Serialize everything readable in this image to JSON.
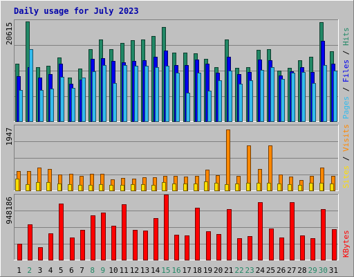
{
  "chart_data": [
    {
      "type": "bar",
      "title": "Daily usage for July 2023",
      "categories": [
        "1",
        "2",
        "3",
        "4",
        "5",
        "6",
        "7",
        "8",
        "9",
        "10",
        "11",
        "12",
        "13",
        "14",
        "15",
        "16",
        "17",
        "18",
        "19",
        "20",
        "21",
        "22",
        "23",
        "24",
        "25",
        "26",
        "27",
        "28",
        "29",
        "30",
        "31"
      ],
      "weekend_days": [
        "2",
        "8",
        "9",
        "15",
        "16",
        "22",
        "23",
        "29",
        "30"
      ],
      "ylabel_parts": [
        "Pages",
        "Files",
        "Hits"
      ],
      "ytick": "20615",
      "ylim": [
        0,
        20615
      ],
      "grid": true,
      "series": [
        {
          "name": "Hits",
          "color": "#228866",
          "values": [
            11800,
            20400,
            11100,
            11400,
            13100,
            9000,
            10900,
            14800,
            16700,
            14700,
            16000,
            16600,
            16700,
            17400,
            19200,
            14000,
            14000,
            13900,
            12800,
            11200,
            16700,
            11000,
            11200,
            14600,
            14700,
            10500,
            11000,
            12600,
            13200,
            20200,
            14400
          ]
        },
        {
          "name": "Files",
          "color": "#0000ee",
          "values": [
            9300,
            11100,
            9100,
            9700,
            11900,
            7800,
            8700,
            12800,
            12900,
            12400,
            12100,
            12400,
            12600,
            13200,
            14500,
            11600,
            11500,
            12700,
            11800,
            10000,
            13300,
            9700,
            10200,
            12700,
            12500,
            9500,
            10300,
            11100,
            10100,
            16400,
            11800
          ]
        },
        {
          "name": "Pages",
          "color": "#33bbee",
          "values": [
            6500,
            14800,
            6500,
            6800,
            9200,
            7000,
            9000,
            10300,
            11500,
            8000,
            11600,
            11400,
            11400,
            11200,
            11400,
            10000,
            6000,
            10000,
            6400,
            8500,
            10400,
            7800,
            8500,
            10600,
            11100,
            8800,
            10000,
            10200,
            7900,
            11600,
            10400
          ]
        }
      ]
    },
    {
      "type": "bar",
      "ylabel_parts": [
        "Sites",
        "Visits"
      ],
      "ytick": "1947",
      "ylim": [
        0,
        1947
      ],
      "grid": true,
      "series": [
        {
          "name": "Visits",
          "color": "#ff8800",
          "values": [
            610,
            600,
            710,
            660,
            500,
            530,
            460,
            520,
            520,
            370,
            400,
            390,
            420,
            420,
            460,
            470,
            450,
            470,
            640,
            490,
            1830,
            460,
            1350,
            670,
            1350,
            500,
            450,
            340,
            460,
            700,
            460
          ]
        },
        {
          "name": "Sites",
          "color": "#ffdd00",
          "values": [
            390,
            230,
            280,
            280,
            250,
            220,
            200,
            200,
            230,
            210,
            200,
            230,
            230,
            210,
            280,
            240,
            240,
            250,
            300,
            260,
            230,
            240,
            260,
            260,
            260,
            240,
            230,
            210,
            260,
            260,
            250
          ]
        }
      ]
    },
    {
      "type": "bar",
      "ylabel_parts": [
        "KBytes"
      ],
      "ytick": "948186",
      "ylim": [
        0,
        948186
      ],
      "grid": true,
      "series": [
        {
          "name": "KBytes",
          "color": "#ff0000",
          "values": [
            248000,
            519000,
            197000,
            393000,
            822000,
            334000,
            444000,
            648000,
            696000,
            499000,
            811000,
            441000,
            438000,
            615000,
            953000,
            376000,
            368000,
            756000,
            428000,
            383000,
            745000,
            328000,
            360000,
            838000,
            467000,
            334000,
            838000,
            368000,
            329000,
            744000,
            457000
          ]
        }
      ]
    }
  ]
}
